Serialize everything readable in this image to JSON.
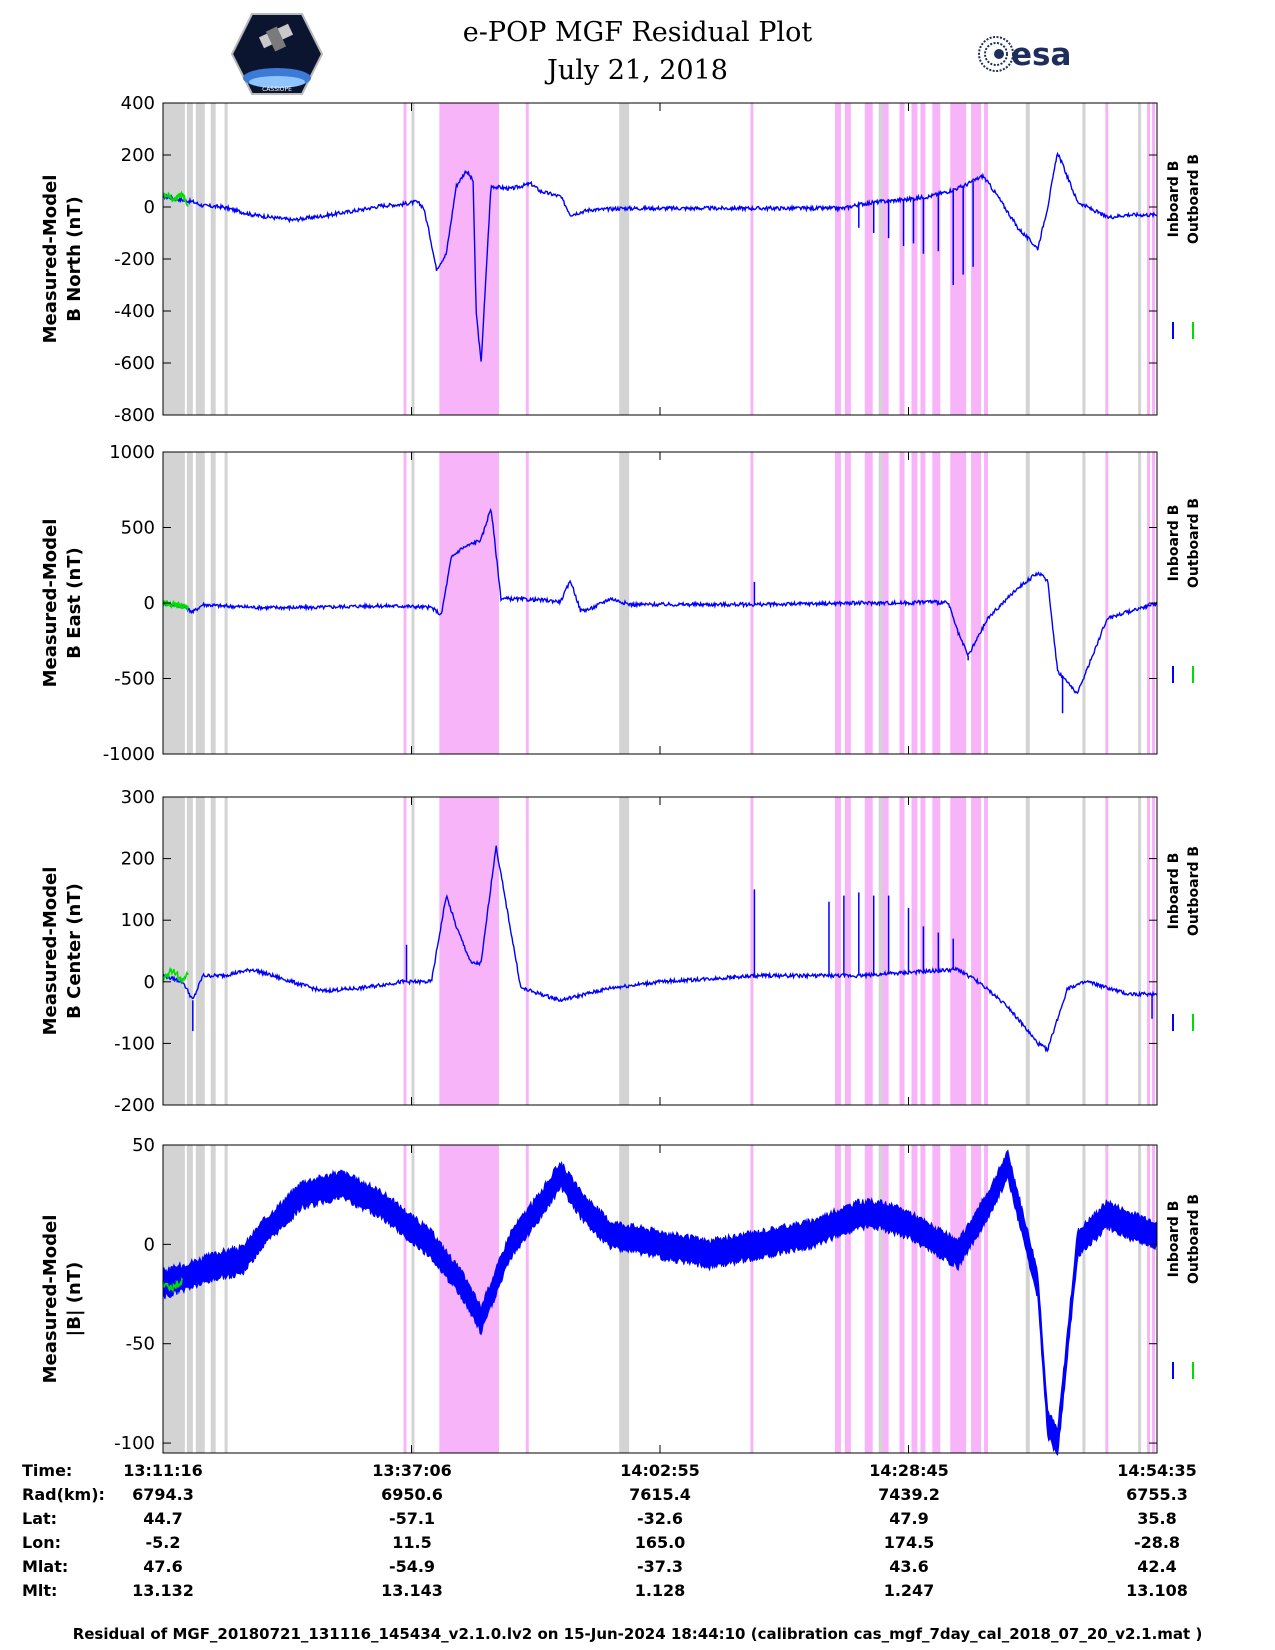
{
  "header": {
    "title_line1": "e-POP MGF Residual Plot",
    "title_line2": "July 21, 2018",
    "left_logo_text": "CASSIOPE",
    "right_logo_text": "esa"
  },
  "colors": {
    "inboard": "#0000ff",
    "outboard": "#00dd00",
    "shade_magenta": "#f8b4f8",
    "shade_gray": "#d3d3d3",
    "axis": "#000000"
  },
  "chart_data": [
    {
      "type": "line",
      "ylabel_line1": "Measured-Model",
      "ylabel_line2": "B North (nT)",
      "ylim": [
        -800,
        400
      ],
      "yticks": [
        "400",
        "200",
        "0",
        "-200",
        "-400",
        "-600",
        "-800"
      ],
      "ytick_values": [
        400,
        200,
        0,
        -200,
        -400,
        -600,
        -800
      ],
      "legend": [
        "Inboard B",
        "Outboard B"
      ],
      "series": [
        {
          "name": "Inboard B",
          "x": [
            0,
            1.5,
            3,
            4,
            6,
            9,
            13,
            16,
            20,
            22,
            24,
            25.5,
            26.2,
            26.8,
            27.5,
            28.5,
            29.5,
            30.5,
            31.2,
            31.5,
            32,
            33,
            35,
            37,
            38,
            40,
            41,
            42,
            43,
            44,
            46,
            50,
            55,
            60,
            65,
            68.5,
            70,
            72,
            75,
            77,
            79,
            80.5,
            81.5,
            82.5,
            84,
            86,
            88,
            89,
            90,
            92,
            95,
            97,
            100
          ],
          "y": [
            40,
            30,
            20,
            5,
            0,
            -30,
            -50,
            -35,
            -10,
            5,
            10,
            20,
            0,
            -100,
            -240,
            -180,
            80,
            140,
            100,
            -400,
            -600,
            80,
            70,
            90,
            60,
            40,
            -30,
            -20,
            -10,
            -10,
            -5,
            -5,
            -5,
            -5,
            -5,
            -5,
            10,
            20,
            30,
            40,
            60,
            80,
            100,
            120,
            40,
            -80,
            -160,
            0,
            210,
            20,
            -40,
            -30,
            -30
          ]
        },
        {
          "name": "Outboard B",
          "x": [
            0,
            1,
            2,
            2.5
          ],
          "y": [
            55,
            30,
            50,
            10
          ]
        }
      ],
      "spikes": [
        {
          "x": 70,
          "y": -80
        },
        {
          "x": 71.5,
          "y": -100
        },
        {
          "x": 73,
          "y": -120
        },
        {
          "x": 74.5,
          "y": -150
        },
        {
          "x": 75.5,
          "y": -140
        },
        {
          "x": 76.5,
          "y": -180
        },
        {
          "x": 78,
          "y": -170
        },
        {
          "x": 79.5,
          "y": -300
        },
        {
          "x": 80.5,
          "y": -260
        },
        {
          "x": 81.5,
          "y": -230
        }
      ]
    },
    {
      "type": "line",
      "ylabel_line1": "Measured-Model",
      "ylabel_line2": "B East (nT)",
      "ylim": [
        -1000,
        1000
      ],
      "yticks": [
        "1000",
        "500",
        "0",
        "-500",
        "-1000"
      ],
      "ytick_values": [
        1000,
        500,
        0,
        -500,
        -1000
      ],
      "legend": [
        "Inboard B",
        "Outboard B"
      ],
      "series": [
        {
          "name": "Inboard B",
          "x": [
            0,
            2,
            3,
            4,
            6,
            10,
            15,
            20,
            24,
            27,
            28,
            29,
            30,
            32,
            33,
            34,
            38,
            40,
            41,
            42,
            43,
            45,
            47,
            50,
            60,
            70,
            72,
            75,
            77,
            79,
            80,
            81,
            83,
            86,
            88,
            89,
            90,
            92,
            95,
            100
          ],
          "y": [
            0,
            -20,
            -60,
            -10,
            -20,
            -30,
            -30,
            -20,
            -20,
            -30,
            -80,
            300,
            360,
            420,
            630,
            30,
            20,
            10,
            150,
            -50,
            -40,
            30,
            -10,
            -10,
            -10,
            0,
            0,
            0,
            10,
            0,
            -200,
            -350,
            -100,
            100,
            200,
            150,
            -450,
            -600,
            -100,
            0
          ]
        },
        {
          "name": "Outboard B",
          "x": [
            0,
            1,
            2,
            2.5
          ],
          "y": [
            0,
            -10,
            -20,
            -30
          ]
        }
      ],
      "spikes": [
        {
          "x": 59.5,
          "y": 140
        },
        {
          "x": 81,
          "y": -380
        },
        {
          "x": 90.5,
          "y": -730
        }
      ]
    },
    {
      "type": "line",
      "ylabel_line1": "Measured-Model",
      "ylabel_line2": "B Center (nT)",
      "ylim": [
        -200,
        300
      ],
      "yticks": [
        "300",
        "200",
        "100",
        "0",
        "-100",
        "-200"
      ],
      "ytick_values": [
        300,
        200,
        100,
        0,
        -100,
        -200
      ],
      "legend": [
        "Inboard B",
        "Outboard B"
      ],
      "series": [
        {
          "name": "Inboard B",
          "x": [
            0,
            2,
            3,
            4,
            6,
            9,
            13,
            16,
            20,
            24,
            27,
            28.5,
            29.5,
            31,
            32,
            33.5,
            36,
            40,
            45,
            50,
            55,
            60,
            65,
            70,
            75,
            80,
            82,
            85,
            88,
            89,
            91,
            93,
            95,
            97,
            100
          ],
          "y": [
            10,
            0,
            -30,
            10,
            10,
            20,
            0,
            -15,
            -10,
            0,
            0,
            140,
            90,
            30,
            30,
            220,
            -10,
            -30,
            -10,
            0,
            5,
            10,
            10,
            10,
            15,
            20,
            0,
            -40,
            -100,
            -110,
            -10,
            0,
            -10,
            -20,
            -20
          ]
        },
        {
          "name": "Outboard B",
          "x": [
            0,
            1,
            2,
            2.5
          ],
          "y": [
            5,
            20,
            0,
            15
          ]
        }
      ],
      "spikes": [
        {
          "x": 3,
          "y": -80
        },
        {
          "x": 24.5,
          "y": 60
        },
        {
          "x": 59.5,
          "y": 150
        },
        {
          "x": 67,
          "y": 130
        },
        {
          "x": 68.5,
          "y": 140
        },
        {
          "x": 70,
          "y": 145
        },
        {
          "x": 71.5,
          "y": 140
        },
        {
          "x": 73,
          "y": 140
        },
        {
          "x": 75,
          "y": 120
        },
        {
          "x": 76.5,
          "y": 90
        },
        {
          "x": 78,
          "y": 80
        },
        {
          "x": 79.5,
          "y": 70
        },
        {
          "x": 99.5,
          "y": -60
        }
      ]
    },
    {
      "type": "line",
      "ylabel_line1": "Measured-Model",
      "ylabel_line2": "|B| (nT)",
      "ylim": [
        -105,
        50
      ],
      "yticks": [
        "50",
        "0",
        "-50",
        "-100"
      ],
      "ytick_values": [
        50,
        0,
        -50,
        -100
      ],
      "legend": [
        "Inboard B",
        "Outboard B"
      ],
      "series": [
        {
          "name": "Inboard B",
          "x": [
            0,
            3,
            6,
            8,
            10,
            14,
            18,
            22,
            25,
            27,
            30,
            32,
            35,
            38,
            40,
            42,
            45,
            50,
            55,
            60,
            65,
            70,
            72,
            75,
            80,
            83,
            85,
            88,
            89,
            90,
            92,
            95,
            97,
            100
          ],
          "y": [
            -20,
            -15,
            -10,
            -8,
            5,
            25,
            30,
            20,
            8,
            0,
            -20,
            -38,
            0,
            20,
            35,
            20,
            5,
            0,
            -5,
            0,
            5,
            15,
            15,
            10,
            -5,
            20,
            40,
            -20,
            -90,
            -100,
            0,
            15,
            10,
            5
          ]
        },
        {
          "name": "Outboard B",
          "x": [
            0,
            1,
            2
          ],
          "y": [
            -20,
            -22,
            -18
          ]
        }
      ],
      "spikes": [],
      "band": 8
    }
  ],
  "shading": {
    "magenta_ranges": [
      [
        24.2,
        24.5
      ],
      [
        27.8,
        33.8
      ],
      [
        36.5,
        36.8
      ],
      [
        59.1,
        59.4
      ],
      [
        67.6,
        68.2
      ],
      [
        68.6,
        69.2
      ],
      [
        70.6,
        71.4
      ],
      [
        72.4,
        73.0
      ],
      [
        74.1,
        74.6
      ],
      [
        75.3,
        75.9
      ],
      [
        76.2,
        76.7
      ],
      [
        77.4,
        78.2
      ],
      [
        79.2,
        80.8
      ],
      [
        81.3,
        82.3
      ],
      [
        82.6,
        83.0
      ],
      [
        94.8,
        95.1
      ],
      [
        99.0,
        99.3
      ],
      [
        99.5,
        99.8
      ]
    ],
    "gray_ranges": [
      [
        0,
        2.2
      ],
      [
        2.4,
        3.0
      ],
      [
        3.3,
        4.2
      ],
      [
        4.8,
        5.3
      ],
      [
        6.2,
        6.5
      ],
      [
        25.0,
        25.3
      ],
      [
        45.9,
        46.9
      ],
      [
        72.0,
        72.8
      ],
      [
        86.8,
        87.2
      ],
      [
        92.5,
        92.8
      ],
      [
        98.1,
        98.4
      ]
    ]
  },
  "footer": {
    "rows": [
      {
        "label": "Time:",
        "values": [
          "13:11:16",
          "13:37:06",
          "14:02:55",
          "14:28:45",
          "14:54:35"
        ]
      },
      {
        "label": "Rad(km):",
        "values": [
          "6794.3",
          "6950.6",
          "7615.4",
          "7439.2",
          "6755.3"
        ]
      },
      {
        "label": "Lat:",
        "values": [
          "44.7",
          "-57.1",
          "-32.6",
          "47.9",
          "35.8"
        ]
      },
      {
        "label": "Lon:",
        "values": [
          "-5.2",
          "11.5",
          "165.0",
          "174.5",
          "-28.8"
        ]
      },
      {
        "label": "Mlat:",
        "values": [
          "47.6",
          "-54.9",
          "-37.3",
          "43.6",
          "42.4"
        ]
      },
      {
        "label": "Mlt:",
        "values": [
          "13.132",
          "13.143",
          "1.128",
          "1.247",
          "13.108"
        ]
      }
    ],
    "caption": "Residual of MGF_20180721_131116_145434_v2.1.0.lv2 on 15-Jun-2024 18:44:10 (calibration cas_mgf_7day_cal_2018_07_20_v2.1.mat )"
  }
}
